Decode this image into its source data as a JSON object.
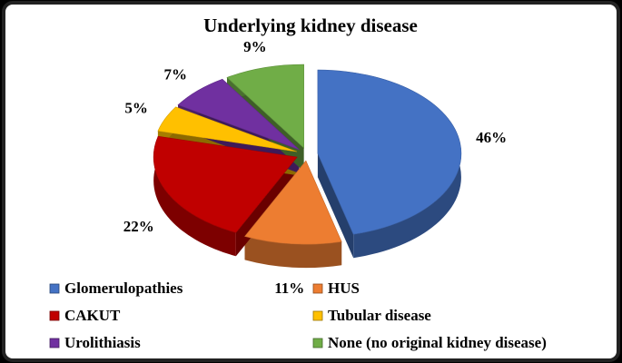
{
  "chart_data": {
    "type": "pie",
    "title": "Underlying kidney disease",
    "categories": [
      "Glomerulopathies",
      "HUS",
      "CAKUT",
      "Tubular disease",
      "Urolithiasis",
      "None (no original kidney disease)"
    ],
    "values": [
      46,
      11,
      22,
      5,
      7,
      9
    ],
    "value_labels": [
      "46%",
      "11%",
      "22%",
      "5%",
      "7%",
      "9%"
    ],
    "colors": [
      "#4472c4",
      "#ed7d31",
      "#c00000",
      "#ffc000",
      "#7030a0",
      "#70ad47"
    ]
  }
}
